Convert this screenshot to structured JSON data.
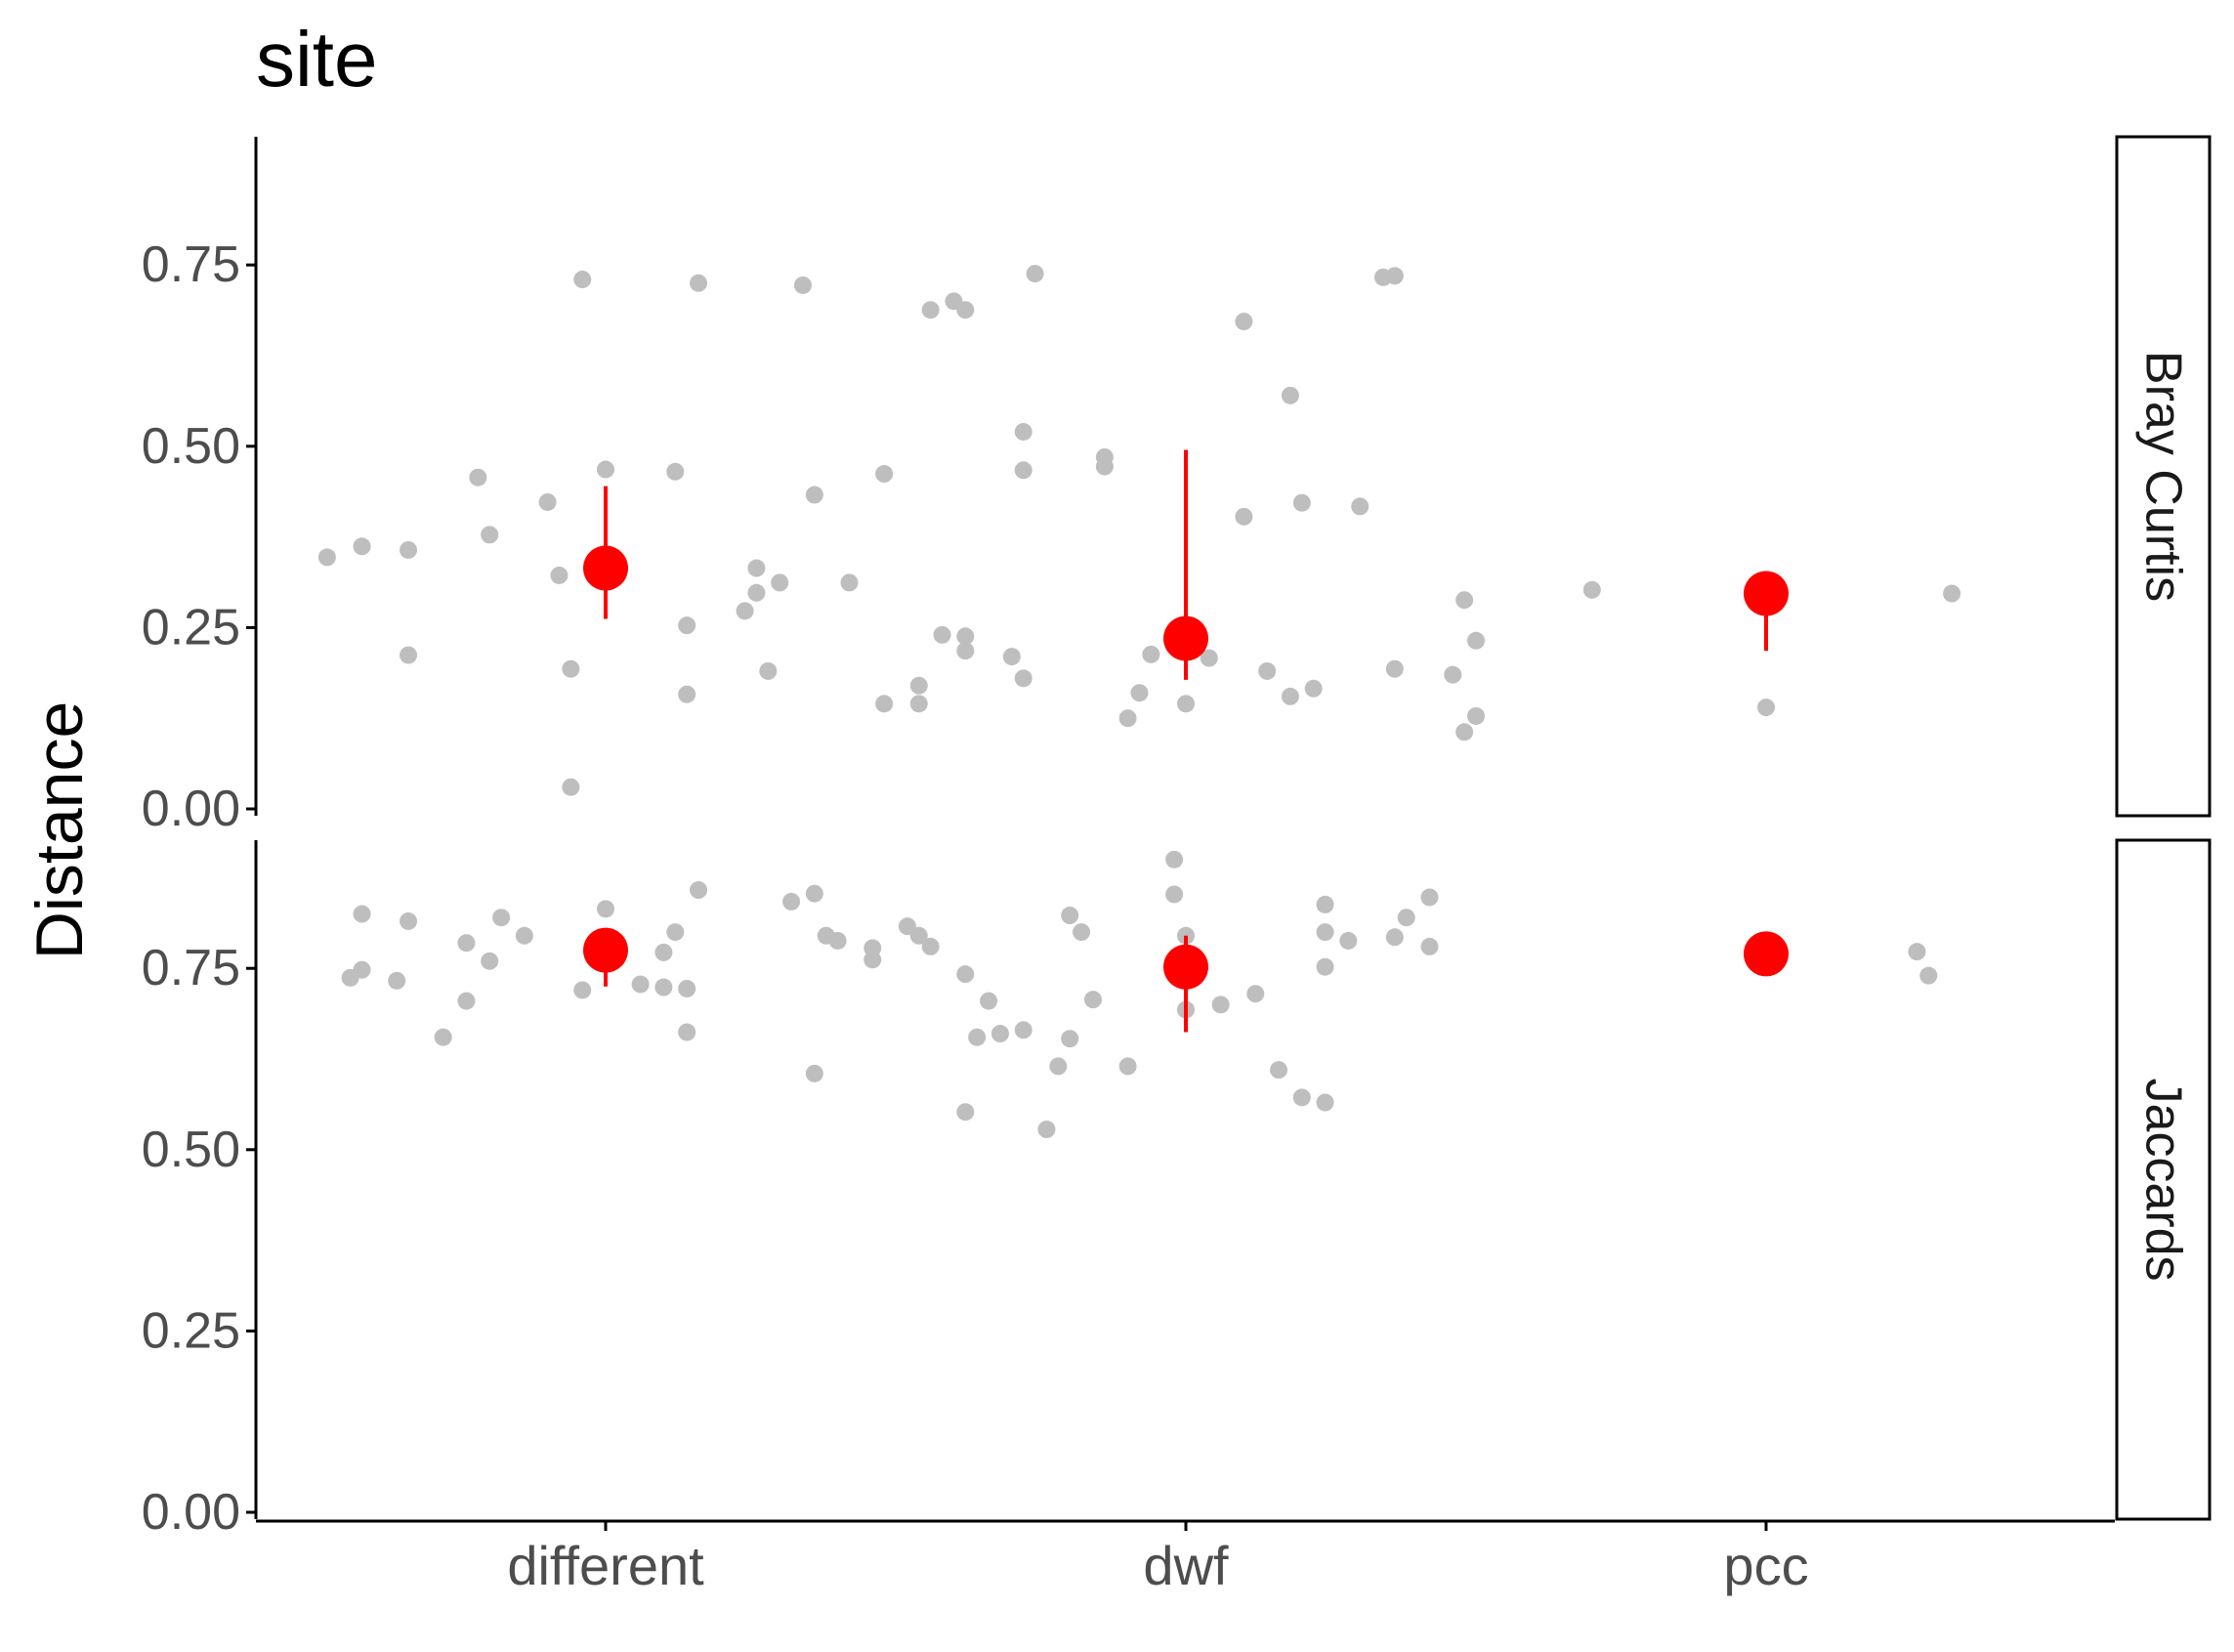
{
  "chart_data": {
    "type": "scatter",
    "title": "site",
    "xlabel": "",
    "ylabel": "Distance",
    "categories": [
      "different",
      "dwf",
      "pcc"
    ],
    "ylim": [
      0,
      0.92
    ],
    "yticks": [
      "0.00",
      "0.25",
      "0.50",
      "0.75"
    ],
    "colors": {
      "points": "#bebebe",
      "summary": "#ff0000",
      "axis": "#000000",
      "tick_label": "#4d4d4d"
    },
    "legend": "none",
    "grid": false,
    "panels": [
      {
        "name": "Bray Curtis",
        "points": [
          {
            "category": "different",
            "offset": -0.02,
            "y": 0.73
          },
          {
            "category": "different",
            "offset": 0.08,
            "y": 0.725
          },
          {
            "category": "different",
            "offset": 0.17,
            "y": 0.722
          },
          {
            "category": "different",
            "offset": -0.11,
            "y": 0.457
          },
          {
            "category": "different",
            "offset": 0.0,
            "y": 0.468
          },
          {
            "category": "different",
            "offset": 0.06,
            "y": 0.465
          },
          {
            "category": "different",
            "offset": 0.24,
            "y": 0.462
          },
          {
            "category": "different",
            "offset": -0.05,
            "y": 0.423
          },
          {
            "category": "different",
            "offset": 0.18,
            "y": 0.433
          },
          {
            "category": "different",
            "offset": -0.21,
            "y": 0.362
          },
          {
            "category": "different",
            "offset": -0.17,
            "y": 0.357
          },
          {
            "category": "different",
            "offset": -0.24,
            "y": 0.347
          },
          {
            "category": "different",
            "offset": -0.1,
            "y": 0.378
          },
          {
            "category": "different",
            "offset": -0.04,
            "y": 0.322
          },
          {
            "category": "different",
            "offset": 0.13,
            "y": 0.332
          },
          {
            "category": "different",
            "offset": 0.15,
            "y": 0.312
          },
          {
            "category": "different",
            "offset": 0.21,
            "y": 0.312
          },
          {
            "category": "different",
            "offset": 0.13,
            "y": 0.298
          },
          {
            "category": "different",
            "offset": 0.12,
            "y": 0.273
          },
          {
            "category": "different",
            "offset": 0.07,
            "y": 0.253
          },
          {
            "category": "different",
            "offset": -0.17,
            "y": 0.212
          },
          {
            "category": "different",
            "offset": -0.03,
            "y": 0.193
          },
          {
            "category": "different",
            "offset": 0.14,
            "y": 0.19
          },
          {
            "category": "different",
            "offset": 0.07,
            "y": 0.158
          },
          {
            "category": "different",
            "offset": 0.24,
            "y": 0.145
          },
          {
            "category": "different",
            "offset": -0.03,
            "y": 0.03
          },
          {
            "category": "dwf",
            "offset": -0.13,
            "y": 0.738
          },
          {
            "category": "dwf",
            "offset": -0.2,
            "y": 0.7
          },
          {
            "category": "dwf",
            "offset": -0.22,
            "y": 0.688
          },
          {
            "category": "dwf",
            "offset": -0.19,
            "y": 0.688
          },
          {
            "category": "dwf",
            "offset": 0.05,
            "y": 0.672
          },
          {
            "category": "dwf",
            "offset": 0.17,
            "y": 0.733
          },
          {
            "category": "dwf",
            "offset": 0.18,
            "y": 0.735
          },
          {
            "category": "dwf",
            "offset": 0.09,
            "y": 0.57
          },
          {
            "category": "dwf",
            "offset": -0.14,
            "y": 0.52
          },
          {
            "category": "dwf",
            "offset": -0.07,
            "y": 0.485
          },
          {
            "category": "dwf",
            "offset": -0.07,
            "y": 0.472
          },
          {
            "category": "dwf",
            "offset": -0.14,
            "y": 0.467
          },
          {
            "category": "dwf",
            "offset": 0.1,
            "y": 0.422
          },
          {
            "category": "dwf",
            "offset": 0.15,
            "y": 0.417
          },
          {
            "category": "dwf",
            "offset": 0.05,
            "y": 0.403
          },
          {
            "category": "dwf",
            "offset": -0.21,
            "y": 0.24
          },
          {
            "category": "dwf",
            "offset": -0.19,
            "y": 0.238
          },
          {
            "category": "dwf",
            "offset": -0.19,
            "y": 0.218
          },
          {
            "category": "dwf",
            "offset": -0.15,
            "y": 0.21
          },
          {
            "category": "dwf",
            "offset": -0.03,
            "y": 0.213
          },
          {
            "category": "dwf",
            "offset": 0.02,
            "y": 0.208
          },
          {
            "category": "dwf",
            "offset": -0.14,
            "y": 0.18
          },
          {
            "category": "dwf",
            "offset": -0.23,
            "y": 0.17
          },
          {
            "category": "dwf",
            "offset": -0.04,
            "y": 0.16
          },
          {
            "category": "dwf",
            "offset": 0.07,
            "y": 0.19
          },
          {
            "category": "dwf",
            "offset": 0.11,
            "y": 0.166
          },
          {
            "category": "dwf",
            "offset": 0.09,
            "y": 0.155
          },
          {
            "category": "dwf",
            "offset": 0.18,
            "y": 0.193
          },
          {
            "category": "dwf",
            "offset": 0.23,
            "y": 0.185
          },
          {
            "category": "dwf",
            "offset": 0.24,
            "y": 0.288
          },
          {
            "category": "dwf",
            "offset": 0.25,
            "y": 0.232
          },
          {
            "category": "dwf",
            "offset": -0.23,
            "y": 0.145
          },
          {
            "category": "dwf",
            "offset": 0.0,
            "y": 0.145
          },
          {
            "category": "dwf",
            "offset": -0.05,
            "y": 0.125
          },
          {
            "category": "dwf",
            "offset": 0.25,
            "y": 0.128
          },
          {
            "category": "dwf",
            "offset": 0.24,
            "y": 0.106
          },
          {
            "category": "pcc",
            "offset": -0.15,
            "y": 0.302
          },
          {
            "category": "pcc",
            "offset": 0.16,
            "y": 0.297
          },
          {
            "category": "pcc",
            "offset": 0.0,
            "y": 0.14
          }
        ],
        "summary": [
          {
            "category": "different",
            "mean": 0.332,
            "low": 0.262,
            "high": 0.445
          },
          {
            "category": "dwf",
            "mean": 0.235,
            "low": 0.178,
            "high": 0.495
          },
          {
            "category": "pcc",
            "mean": 0.297,
            "low": 0.218,
            "high": 0.297
          }
        ]
      },
      {
        "name": "Jaccards",
        "points": [
          {
            "category": "different",
            "offset": -0.21,
            "y": 0.825
          },
          {
            "category": "different",
            "offset": -0.17,
            "y": 0.815
          },
          {
            "category": "different",
            "offset": -0.09,
            "y": 0.82
          },
          {
            "category": "different",
            "offset": 0.0,
            "y": 0.832
          },
          {
            "category": "different",
            "offset": 0.08,
            "y": 0.858
          },
          {
            "category": "different",
            "offset": 0.16,
            "y": 0.842
          },
          {
            "category": "different",
            "offset": 0.18,
            "y": 0.853
          },
          {
            "category": "different",
            "offset": -0.07,
            "y": 0.795
          },
          {
            "category": "different",
            "offset": -0.12,
            "y": 0.785
          },
          {
            "category": "different",
            "offset": 0.06,
            "y": 0.8
          },
          {
            "category": "different",
            "offset": 0.19,
            "y": 0.795
          },
          {
            "category": "different",
            "offset": 0.2,
            "y": 0.788
          },
          {
            "category": "different",
            "offset": 0.23,
            "y": 0.778
          },
          {
            "category": "different",
            "offset": 0.23,
            "y": 0.762
          },
          {
            "category": "different",
            "offset": -0.1,
            "y": 0.76
          },
          {
            "category": "different",
            "offset": 0.05,
            "y": 0.772
          },
          {
            "category": "different",
            "offset": -0.21,
            "y": 0.748
          },
          {
            "category": "different",
            "offset": -0.22,
            "y": 0.737
          },
          {
            "category": "different",
            "offset": -0.18,
            "y": 0.733
          },
          {
            "category": "different",
            "offset": 0.03,
            "y": 0.728
          },
          {
            "category": "different",
            "offset": 0.05,
            "y": 0.724
          },
          {
            "category": "different",
            "offset": 0.07,
            "y": 0.722
          },
          {
            "category": "different",
            "offset": -0.02,
            "y": 0.72
          },
          {
            "category": "different",
            "offset": -0.12,
            "y": 0.705
          },
          {
            "category": "different",
            "offset": -0.14,
            "y": 0.655
          },
          {
            "category": "different",
            "offset": 0.07,
            "y": 0.662
          },
          {
            "category": "different",
            "offset": 0.18,
            "y": 0.605
          },
          {
            "category": "dwf",
            "offset": -0.01,
            "y": 0.9
          },
          {
            "category": "dwf",
            "offset": -0.01,
            "y": 0.852
          },
          {
            "category": "dwf",
            "offset": 0.12,
            "y": 0.838
          },
          {
            "category": "dwf",
            "offset": 0.21,
            "y": 0.848
          },
          {
            "category": "dwf",
            "offset": 0.19,
            "y": 0.82
          },
          {
            "category": "dwf",
            "offset": -0.1,
            "y": 0.823
          },
          {
            "category": "dwf",
            "offset": -0.24,
            "y": 0.808
          },
          {
            "category": "dwf",
            "offset": -0.23,
            "y": 0.795
          },
          {
            "category": "dwf",
            "offset": -0.09,
            "y": 0.8
          },
          {
            "category": "dwf",
            "offset": 0.0,
            "y": 0.795
          },
          {
            "category": "dwf",
            "offset": 0.12,
            "y": 0.8
          },
          {
            "category": "dwf",
            "offset": 0.14,
            "y": 0.788
          },
          {
            "category": "dwf",
            "offset": 0.18,
            "y": 0.793
          },
          {
            "category": "dwf",
            "offset": 0.21,
            "y": 0.78
          },
          {
            "category": "dwf",
            "offset": -0.22,
            "y": 0.78
          },
          {
            "category": "dwf",
            "offset": 0.12,
            "y": 0.752
          },
          {
            "category": "dwf",
            "offset": -0.19,
            "y": 0.742
          },
          {
            "category": "dwf",
            "offset": -0.17,
            "y": 0.705
          },
          {
            "category": "dwf",
            "offset": -0.08,
            "y": 0.707
          },
          {
            "category": "dwf",
            "offset": 0.06,
            "y": 0.715
          },
          {
            "category": "dwf",
            "offset": 0.03,
            "y": 0.7
          },
          {
            "category": "dwf",
            "offset": 0.0,
            "y": 0.693
          },
          {
            "category": "dwf",
            "offset": -0.16,
            "y": 0.66
          },
          {
            "category": "dwf",
            "offset": -0.18,
            "y": 0.655
          },
          {
            "category": "dwf",
            "offset": -0.14,
            "y": 0.665
          },
          {
            "category": "dwf",
            "offset": -0.1,
            "y": 0.653
          },
          {
            "category": "dwf",
            "offset": -0.11,
            "y": 0.615
          },
          {
            "category": "dwf",
            "offset": -0.05,
            "y": 0.615
          },
          {
            "category": "dwf",
            "offset": 0.08,
            "y": 0.61
          },
          {
            "category": "dwf",
            "offset": 0.1,
            "y": 0.572
          },
          {
            "category": "dwf",
            "offset": 0.12,
            "y": 0.565
          },
          {
            "category": "dwf",
            "offset": -0.19,
            "y": 0.552
          },
          {
            "category": "dwf",
            "offset": -0.12,
            "y": 0.528
          },
          {
            "category": "pcc",
            "offset": 0.13,
            "y": 0.773
          },
          {
            "category": "pcc",
            "offset": 0.14,
            "y": 0.74
          }
        ],
        "summary": [
          {
            "category": "different",
            "mean": 0.775,
            "low": 0.725,
            "high": 0.78
          },
          {
            "category": "dwf",
            "mean": 0.752,
            "low": 0.662,
            "high": 0.795
          },
          {
            "category": "pcc",
            "mean": 0.77,
            "low": 0.77,
            "high": 0.77
          }
        ]
      }
    ]
  }
}
